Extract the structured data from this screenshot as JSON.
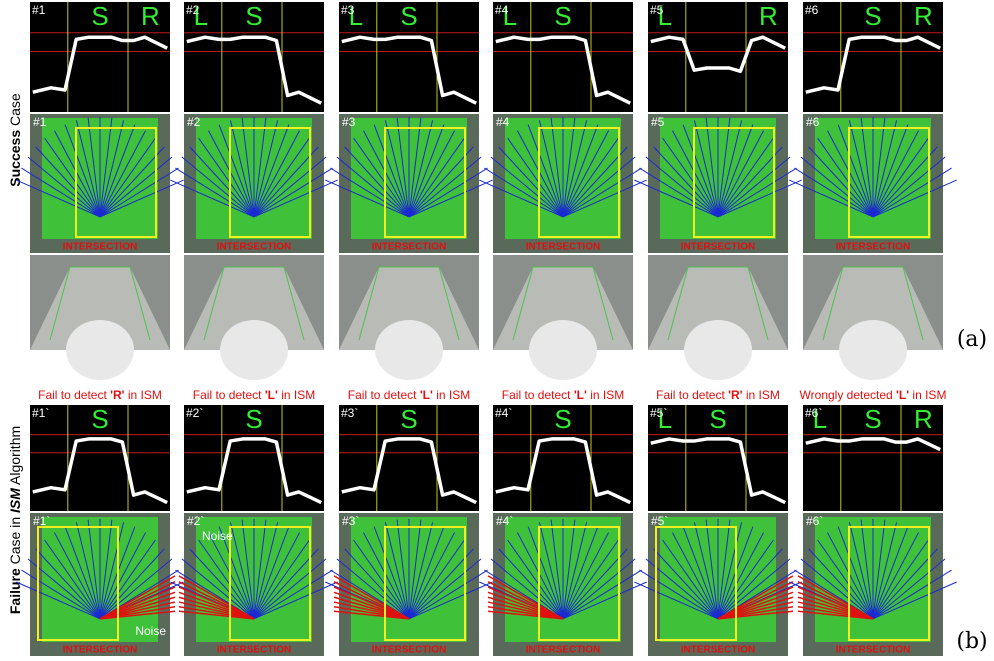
{
  "side_labels": {
    "success": {
      "bold": "Success",
      "rest": " Case"
    },
    "failure": {
      "bold": "Failure",
      "middle": " Case in ",
      "italic": "ISM",
      "rest": " Algorithm"
    }
  },
  "panel_labels": {
    "a": "(a)",
    "b": "(b)"
  },
  "success": {
    "columns": [
      {
        "graph_id": "#1",
        "letters": [
          "S",
          "R"
        ],
        "fan_id": "#1",
        "fan_label": "INTERSECTION"
      },
      {
        "graph_id": "#2",
        "letters": [
          "L",
          "S"
        ],
        "fan_id": "#2",
        "fan_label": "INTERSECTION"
      },
      {
        "graph_id": "#3",
        "letters": [
          "L",
          "S"
        ],
        "fan_id": "#3",
        "fan_label": "INTERSECTION"
      },
      {
        "graph_id": "#4",
        "letters": [
          "L",
          "S"
        ],
        "fan_id": "#4",
        "fan_label": "INTERSECTION"
      },
      {
        "graph_id": "#5",
        "letters": [
          "L",
          "R"
        ],
        "fan_id": "#5",
        "fan_label": "INTERSECTION"
      },
      {
        "graph_id": "#6",
        "letters": [
          "S",
          "R"
        ],
        "fan_id": "#6",
        "fan_label": "INTERSECTION"
      }
    ]
  },
  "failure": {
    "columns": [
      {
        "caption": [
          "Fail to detect ",
          "'R'",
          " in ISM"
        ],
        "graph_id": "#1`",
        "letters": [
          "S"
        ],
        "fan_id": "#1`",
        "fan_label": "INTERSECTION",
        "noise": "Noise"
      },
      {
        "caption": [
          "Fail to detect ",
          "'L'",
          " in ISM"
        ],
        "graph_id": "#2`",
        "letters": [
          "S"
        ],
        "fan_id": "#2`",
        "fan_label": "INTERSECTION",
        "noise": "Noise"
      },
      {
        "caption": [
          "Fail to detect ",
          "'L'",
          " in ISM"
        ],
        "graph_id": "#3`",
        "letters": [
          "S"
        ],
        "fan_id": "#3`",
        "fan_label": "INTERSECTION"
      },
      {
        "caption": [
          "Fail to detect ",
          "'L'",
          " in ISM"
        ],
        "graph_id": "#4`",
        "letters": [
          "S"
        ],
        "fan_id": "#4`",
        "fan_label": "INTERSECTION"
      },
      {
        "caption": [
          "Fail to detect ",
          "'R'",
          " in ISM"
        ],
        "graph_id": "#5`",
        "letters": [
          "L",
          "S"
        ],
        "fan_id": "#5`",
        "fan_label": "INTERSECTION"
      },
      {
        "caption": [
          "Wrongly detected ",
          "'L'",
          " in ISM"
        ],
        "graph_id": "#6`",
        "letters": [
          "L",
          "S",
          "R"
        ],
        "fan_id": "#6`",
        "fan_label": "INTERSECTION"
      }
    ]
  }
}
